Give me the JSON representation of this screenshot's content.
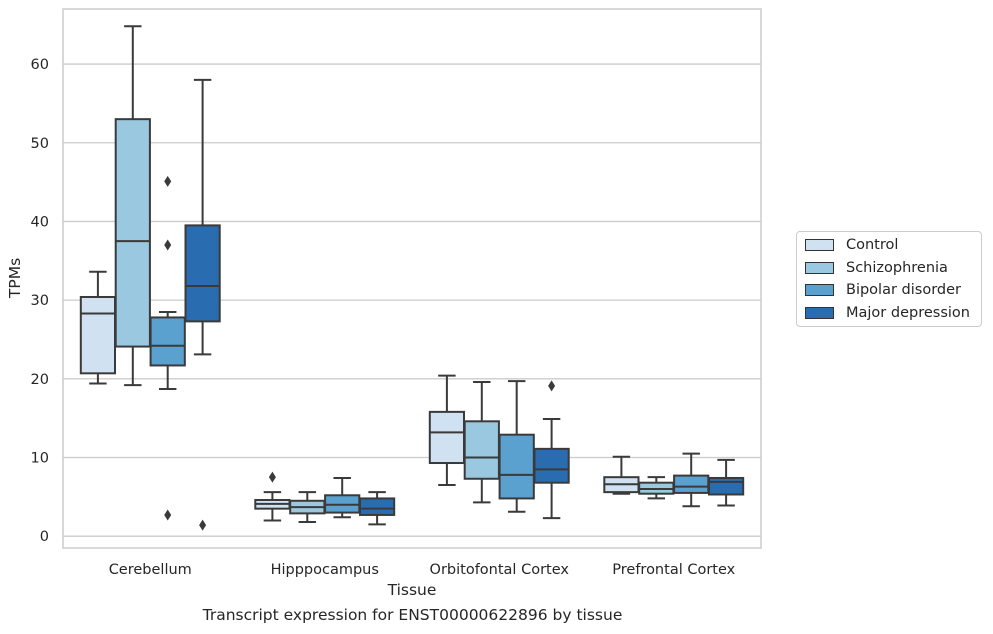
{
  "figure": {
    "caption": "Transcript expression for ENST00000622896 by tissue"
  },
  "chart_data": {
    "type": "box",
    "xlabel": "Tissue",
    "ylabel": "TPMs",
    "ylim": [
      -1.5,
      67
    ],
    "yticks": [
      0,
      10,
      20,
      30,
      40,
      50,
      60
    ],
    "categories": [
      "Cerebellum",
      "Hipppocampus",
      "Orbitofontal Cortex",
      "Prefrontal Cortex"
    ],
    "grid": "horizontal",
    "legend_position": "right",
    "series": [
      {
        "name": "Control",
        "color": "#d0e1f2",
        "boxes": [
          {
            "whislo": 19.4,
            "q1": 20.7,
            "med": 28.3,
            "q3": 30.4,
            "whishi": 33.6,
            "fliers": []
          },
          {
            "whislo": 2.0,
            "q1": 3.5,
            "med": 4.1,
            "q3": 4.6,
            "whishi": 5.6,
            "fliers": [
              7.5
            ]
          },
          {
            "whislo": 6.5,
            "q1": 9.3,
            "med": 13.2,
            "q3": 15.8,
            "whishi": 20.4,
            "fliers": []
          },
          {
            "whislo": 5.4,
            "q1": 5.6,
            "med": 6.6,
            "q3": 7.5,
            "whishi": 10.1,
            "fliers": []
          }
        ]
      },
      {
        "name": "Schizophrenia",
        "color": "#9ac8e0",
        "boxes": [
          {
            "whislo": 19.2,
            "q1": 24.1,
            "med": 37.5,
            "q3": 53.0,
            "whishi": 64.8,
            "fliers": []
          },
          {
            "whislo": 1.8,
            "q1": 2.9,
            "med": 3.7,
            "q3": 4.5,
            "whishi": 5.6,
            "fliers": []
          },
          {
            "whislo": 4.3,
            "q1": 7.3,
            "med": 10.0,
            "q3": 14.6,
            "whishi": 19.6,
            "fliers": []
          },
          {
            "whislo": 4.8,
            "q1": 5.4,
            "med": 6.0,
            "q3": 6.8,
            "whishi": 7.5,
            "fliers": []
          }
        ]
      },
      {
        "name": "Bipolar disorder",
        "color": "#5aa1cf",
        "boxes": [
          {
            "whislo": 18.7,
            "q1": 21.7,
            "med": 24.2,
            "q3": 27.8,
            "whishi": 28.5,
            "fliers": [
              45.1,
              37.0,
              2.7
            ]
          },
          {
            "whislo": 2.4,
            "q1": 3.0,
            "med": 4.0,
            "q3": 5.2,
            "whishi": 7.4,
            "fliers": []
          },
          {
            "whislo": 3.1,
            "q1": 4.8,
            "med": 7.8,
            "q3": 12.9,
            "whishi": 19.7,
            "fliers": []
          },
          {
            "whislo": 3.8,
            "q1": 5.5,
            "med": 6.3,
            "q3": 7.7,
            "whishi": 10.5,
            "fliers": []
          }
        ]
      },
      {
        "name": "Major depression",
        "color": "#2a6cb0",
        "boxes": [
          {
            "whislo": 23.1,
            "q1": 27.3,
            "med": 31.8,
            "q3": 39.5,
            "whishi": 58.0,
            "fliers": [
              1.4
            ]
          },
          {
            "whislo": 1.5,
            "q1": 2.7,
            "med": 3.5,
            "q3": 4.8,
            "whishi": 5.6,
            "fliers": []
          },
          {
            "whislo": 2.3,
            "q1": 6.8,
            "med": 8.5,
            "q3": 11.1,
            "whishi": 14.9,
            "fliers": [
              19.1
            ]
          },
          {
            "whislo": 3.9,
            "q1": 5.3,
            "med": 6.9,
            "q3": 7.4,
            "whishi": 9.7,
            "fliers": []
          }
        ]
      }
    ]
  }
}
